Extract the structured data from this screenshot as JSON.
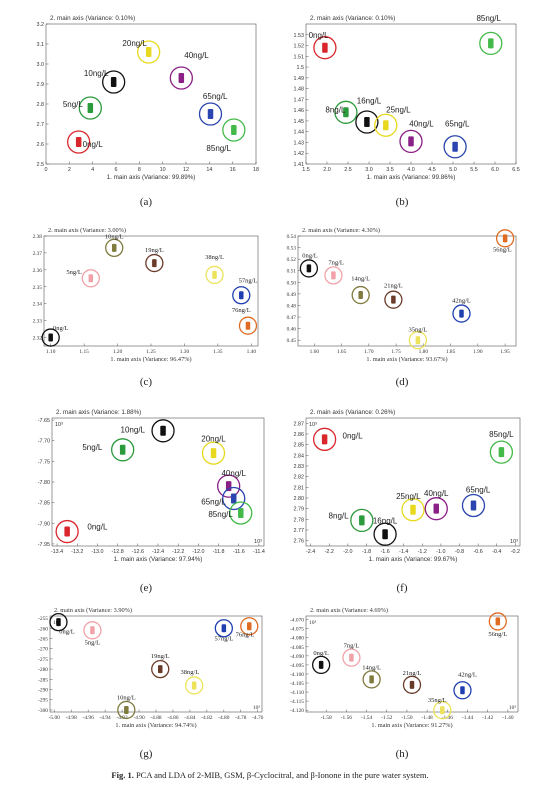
{
  "caption": {
    "fig": "Fig. 1.",
    "text": "PCA and LDA of 2-MIB, GSM, β-Cyclocitral, and β-Ionone in the pure water system."
  },
  "chart_data": [
    {
      "id": "a",
      "panel_label": "(a)",
      "type": "scatter",
      "title": "2. main axis (Variance: 0.10%)",
      "xlabel": "1. main axis (Variance: 99.89%)",
      "xlim": [
        0,
        18
      ],
      "ylim": [
        2.5,
        3.2
      ],
      "xticks": [
        0,
        2,
        4,
        6,
        8,
        10,
        12,
        14,
        16,
        18
      ],
      "yticks": [
        2.5,
        2.6,
        2.7,
        2.8,
        2.9,
        3.0,
        3.1,
        3.2
      ],
      "xtick_labels": [
        "0",
        "2",
        "4",
        "6",
        "8",
        "10",
        "12",
        "14",
        "16",
        "18"
      ],
      "ytick_labels": [
        "2.5",
        "2.6",
        "2.7",
        "2.8",
        "2.9",
        "3.0",
        "3.1",
        "3.2"
      ],
      "font": "sans",
      "points": [
        {
          "label": "0ng/L",
          "x": 2.8,
          "y": 2.61,
          "color": "#d9262c",
          "lx": 4.0,
          "ly": 2.585
        },
        {
          "label": "5ng/L",
          "x": 3.8,
          "y": 2.78,
          "color": "#2a9a3b",
          "lx": 2.3,
          "ly": 2.785
        },
        {
          "label": "10ng/L",
          "x": 5.8,
          "y": 2.91,
          "color": "#111111",
          "lx": 4.3,
          "ly": 2.94
        },
        {
          "label": "20ng/L",
          "x": 8.8,
          "y": 3.06,
          "color": "#e8d91e",
          "lx": 7.6,
          "ly": 3.09
        },
        {
          "label": "40ng/L",
          "x": 11.6,
          "y": 2.93,
          "color": "#8a1f86",
          "lx": 12.9,
          "ly": 3.03
        },
        {
          "label": "65ng/L",
          "x": 14.1,
          "y": 2.75,
          "color": "#2a44b0",
          "lx": 14.5,
          "ly": 2.825
        },
        {
          "label": "85ng/L",
          "x": 16.1,
          "y": 2.67,
          "color": "#43b94a",
          "lx": 14.8,
          "ly": 2.565
        }
      ]
    },
    {
      "id": "b",
      "panel_label": "(b)",
      "type": "scatter",
      "title": "2. main axis (Variance: 0.10%)",
      "xlabel": "1. main axis (Variance: 99.86%)",
      "xlim": [
        1.5,
        6.5
      ],
      "ylim": [
        1.41,
        1.54
      ],
      "xticks": [
        1.5,
        2.0,
        2.5,
        3.0,
        3.5,
        4.0,
        4.5,
        5.0,
        5.5,
        6.0,
        6.5
      ],
      "yticks": [
        1.41,
        1.42,
        1.43,
        1.44,
        1.45,
        1.46,
        1.47,
        1.48,
        1.49,
        1.5,
        1.51,
        1.52,
        1.53
      ],
      "xtick_labels": [
        "1.5",
        "2.0",
        "2.5",
        "3.0",
        "3.5",
        "4.0",
        "4.5",
        "5.0",
        "5.5",
        "6.0",
        "6.5"
      ],
      "ytick_labels": [
        "1.41",
        "1.42",
        "1.43",
        "1.44",
        "1.45",
        "1.46",
        "1.47",
        "1.48",
        "1.49",
        "1.5",
        "1.51",
        "1.52",
        "1.53"
      ],
      "font": "sans",
      "points": [
        {
          "label": "0ng/L",
          "x": 1.95,
          "y": 1.518,
          "color": "#d9262c",
          "lx": 1.8,
          "ly": 1.527
        },
        {
          "label": "8ng/L",
          "x": 2.45,
          "y": 1.458,
          "color": "#2a9a3b",
          "lx": 2.2,
          "ly": 1.458
        },
        {
          "label": "16ng/L",
          "x": 2.95,
          "y": 1.449,
          "color": "#111111",
          "lx": 3.0,
          "ly": 1.466
        },
        {
          "label": "25ng/L",
          "x": 3.4,
          "y": 1.446,
          "color": "#e8d91e",
          "lx": 3.7,
          "ly": 1.458
        },
        {
          "label": "40ng/L",
          "x": 4.0,
          "y": 1.431,
          "color": "#8a1f86",
          "lx": 4.25,
          "ly": 1.445
        },
        {
          "label": "65ng/L",
          "x": 5.05,
          "y": 1.426,
          "color": "#2a44b0",
          "lx": 5.1,
          "ly": 1.445
        },
        {
          "label": "85ng/L",
          "x": 5.9,
          "y": 1.522,
          "color": "#43b94a",
          "lx": 5.85,
          "ly": 1.543
        }
      ]
    },
    {
      "id": "c",
      "panel_label": "(c)",
      "type": "scatter",
      "title": "2. main axis (Variance: 3.00%)",
      "xlabel": "1. main axis (Variance: 96.47%)",
      "xlim": [
        1.09,
        1.41
      ],
      "ylim": [
        2.315,
        2.38
      ],
      "xticks": [
        1.1,
        1.15,
        1.2,
        1.25,
        1.3,
        1.35,
        1.4
      ],
      "yticks": [
        2.32,
        2.33,
        2.34,
        2.35,
        2.36,
        2.37,
        2.38
      ],
      "xtick_labels": [
        "1.10",
        "1.15",
        "1.20",
        "1.25",
        "1.30",
        "1.35",
        "1.40"
      ],
      "ytick_labels": [
        "2.32",
        "2.33",
        "2.34",
        "2.35",
        "2.36",
        "2.37",
        "2.38"
      ],
      "font": "serif",
      "points": [
        {
          "label": "0ng/L",
          "x": 1.1,
          "y": 2.32,
          "color": "#111111",
          "lx": 1.115,
          "ly": 2.3245
        },
        {
          "label": "5ng/L",
          "x": 1.16,
          "y": 2.355,
          "color": "#f0a2a8",
          "lx": 1.135,
          "ly": 2.3575
        },
        {
          "label": "10ng/L",
          "x": 1.195,
          "y": 2.373,
          "color": "#7f7a3d",
          "lx": 1.195,
          "ly": 2.3785
        },
        {
          "label": "19ng/L",
          "x": 1.255,
          "y": 2.364,
          "color": "#6b3b2a",
          "lx": 1.255,
          "ly": 2.3705
        },
        {
          "label": "38ng/L",
          "x": 1.345,
          "y": 2.357,
          "color": "#ece35a",
          "lx": 1.345,
          "ly": 2.3665
        },
        {
          "label": "57ng/L",
          "x": 1.385,
          "y": 2.345,
          "color": "#1f3fb0",
          "lx": 1.395,
          "ly": 2.3525
        },
        {
          "label": "76ng/L",
          "x": 1.395,
          "y": 2.327,
          "color": "#e06b22",
          "lx": 1.385,
          "ly": 2.335
        }
      ]
    },
    {
      "id": "d",
      "panel_label": "(d)",
      "type": "scatter",
      "title": "2. main axis (Variance: 4.30%)",
      "xlabel": "1. main axis (Variance: 93.67%)",
      "xlim": [
        1.57,
        1.97
      ],
      "ylim": [
        0.445,
        0.54
      ],
      "xticks": [
        1.6,
        1.65,
        1.7,
        1.75,
        1.8,
        1.85,
        1.9,
        1.95
      ],
      "yticks": [
        0.45,
        0.46,
        0.47,
        0.48,
        0.49,
        0.5,
        0.51,
        0.52,
        0.53,
        0.54
      ],
      "xtick_labels": [
        "1.60",
        "1.65",
        "1.70",
        "1.75",
        "1.80",
        "1.85",
        "1.90",
        "1.95"
      ],
      "ytick_labels": [
        "0.45",
        "0.46",
        "0.47",
        "0.48",
        "0.49",
        "0.50",
        "0.51",
        "0.52",
        "0.53",
        "0.54"
      ],
      "font": "serif",
      "points": [
        {
          "label": "0ng/L",
          "x": 1.59,
          "y": 0.512,
          "color": "#111111",
          "lx": 1.592,
          "ly": 0.5215
        },
        {
          "label": "7ng/L",
          "x": 1.635,
          "y": 0.506,
          "color": "#f0a2a8",
          "lx": 1.64,
          "ly": 0.5155
        },
        {
          "label": "14ng/L",
          "x": 1.685,
          "y": 0.489,
          "color": "#7f7a3d",
          "lx": 1.685,
          "ly": 0.5015
        },
        {
          "label": "21ng/L",
          "x": 1.745,
          "y": 0.485,
          "color": "#6b3b2a",
          "lx": 1.745,
          "ly": 0.4955
        },
        {
          "label": "35ng/L",
          "x": 1.79,
          "y": 0.45,
          "color": "#ece35a",
          "lx": 1.79,
          "ly": 0.4575
        },
        {
          "label": "42ng/L",
          "x": 1.87,
          "y": 0.473,
          "color": "#1f3fb0",
          "lx": 1.87,
          "ly": 0.4825
        },
        {
          "label": "56ng/L",
          "x": 1.95,
          "y": 0.538,
          "color": "#e06b22",
          "lx": 1.945,
          "ly": 0.5265
        }
      ]
    },
    {
      "id": "e",
      "panel_label": "(e)",
      "type": "scatter",
      "title": "2. main axis (Variance: 1.88%)",
      "xlabel": "1. main axis (Variance: 97.94%)",
      "multiplier": "10³",
      "xlim": [
        -13.45,
        -11.35
      ],
      "ylim": [
        -7.955,
        -7.645
      ],
      "xticks": [
        -13.4,
        -13.2,
        -13.0,
        -12.8,
        -12.6,
        -12.4,
        -12.2,
        -12.0,
        -11.8,
        -11.6,
        -11.4
      ],
      "yticks": [
        -7.95,
        -7.9,
        -7.85,
        -7.8,
        -7.75,
        -7.7,
        -7.65
      ],
      "xtick_labels": [
        "-13.4",
        "-13.2",
        "-13.0",
        "-12.8",
        "-12.6",
        "-12.4",
        "-12.2",
        "-12.0",
        "-11.8",
        "-11.6",
        "-11.4"
      ],
      "ytick_labels": [
        "-7.95",
        "-7.90",
        "-7.85",
        "-7.80",
        "-7.75",
        "-7.70",
        "-7.65"
      ],
      "font": "sans",
      "points": [
        {
          "label": "0ng/L",
          "x": -13.3,
          "y": -7.92,
          "color": "#d9262c",
          "lx": -13.0,
          "ly": -7.915
        },
        {
          "label": "5ng/L",
          "x": -12.75,
          "y": -7.722,
          "color": "#2a9a3b",
          "lx": -13.05,
          "ly": -7.722
        },
        {
          "label": "10ng/L",
          "x": -12.35,
          "y": -7.676,
          "color": "#111111",
          "lx": -12.65,
          "ly": -7.68
        },
        {
          "label": "20ng/L",
          "x": -11.85,
          "y": -7.73,
          "color": "#e8d91e",
          "lx": -11.85,
          "ly": -7.702
        },
        {
          "label": "40ng/L",
          "x": -11.7,
          "y": -7.81,
          "color": "#8a1f86",
          "lx": -11.65,
          "ly": -7.785
        },
        {
          "label": "65ng/L",
          "x": -11.65,
          "y": -7.84,
          "color": "#2a44b0",
          "lx": -11.85,
          "ly": -7.855
        },
        {
          "label": "85ng/L",
          "x": -11.58,
          "y": -7.875,
          "color": "#43b94a",
          "lx": -11.78,
          "ly": -7.885
        }
      ]
    },
    {
      "id": "f",
      "panel_label": "(f)",
      "type": "scatter",
      "title": "2. main axis (Variance: 0.26%)",
      "xlabel": "1. main axis (Variance: 99.67%)",
      "multiplier": "10³",
      "xlim": [
        -2.45,
        -0.15
      ],
      "ylim": [
        2.755,
        2.875
      ],
      "xticks": [
        -2.4,
        -2.2,
        -2.0,
        -1.8,
        -1.6,
        -1.4,
        -1.2,
        -1.0,
        -0.8,
        -0.6,
        -0.4,
        -0.2
      ],
      "yticks": [
        2.76,
        2.77,
        2.78,
        2.79,
        2.8,
        2.81,
        2.82,
        2.83,
        2.84,
        2.85,
        2.86,
        2.87
      ],
      "xtick_labels": [
        "-2.4",
        "-2.2",
        "-2.0",
        "-1.8",
        "-1.6",
        "-1.4",
        "-1.2",
        "-1.0",
        "-0.8",
        "-0.6",
        "-0.4",
        "-0.2"
      ],
      "ytick_labels": [
        "2.76",
        "2.77",
        "2.78",
        "2.79",
        "2.80",
        "2.81",
        "2.82",
        "2.83",
        "2.84",
        "2.85",
        "2.86",
        "2.87"
      ],
      "font": "sans",
      "points": [
        {
          "label": "0ng/L",
          "x": -2.25,
          "y": 2.855,
          "color": "#d9262c",
          "lx": -1.95,
          "ly": 2.856
        },
        {
          "label": "8ng/L",
          "x": -1.85,
          "y": 2.779,
          "color": "#2a9a3b",
          "lx": -2.1,
          "ly": 2.781
        },
        {
          "label": "16ng/L",
          "x": -1.6,
          "y": 2.766,
          "color": "#111111",
          "lx": -1.6,
          "ly": 2.776
        },
        {
          "label": "25ng/L",
          "x": -1.3,
          "y": 2.789,
          "color": "#e8d91e",
          "lx": -1.35,
          "ly": 2.799
        },
        {
          "label": "40ng/L",
          "x": -1.05,
          "y": 2.79,
          "color": "#8a1f86",
          "lx": -1.05,
          "ly": 2.802
        },
        {
          "label": "65ng/L",
          "x": -0.65,
          "y": 2.793,
          "color": "#2a44b0",
          "lx": -0.6,
          "ly": 2.805
        },
        {
          "label": "85ng/L",
          "x": -0.35,
          "y": 2.843,
          "color": "#43b94a",
          "lx": -0.35,
          "ly": 2.857
        }
      ]
    },
    {
      "id": "g",
      "panel_label": "(g)",
      "type": "scatter",
      "title": "2. main axis (Variance: 3.90%)",
      "xlabel": "1. main axis (Variance: 94.74%)",
      "multiplier": "10³",
      "xlim": [
        -5.005,
        -4.755
      ],
      "ylim": [
        -301,
        -254
      ],
      "xticks": [
        -5.0,
        -4.98,
        -4.96,
        -4.94,
        -4.92,
        -4.9,
        -4.88,
        -4.86,
        -4.84,
        -4.82,
        -4.8,
        -4.78,
        -4.76
      ],
      "yticks": [
        -300,
        -295,
        -290,
        -285,
        -280,
        -275,
        -270,
        -265,
        -260,
        -255
      ],
      "xtick_labels": [
        "-5.00",
        "-4.98",
        "-4.96",
        "-4.94",
        "-4.92",
        "-4.90",
        "-4.88",
        "-4.86",
        "-4.84",
        "-4.82",
        "-4.80",
        "-4.78",
        "-4.76"
      ],
      "ytick_labels": [
        "-300",
        "-295",
        "-290",
        "-285",
        "-280",
        "-275",
        "-270",
        "-265",
        "-260",
        "-255"
      ],
      "font": "serif",
      "points": [
        {
          "label": "0ng/L",
          "x": -4.995,
          "y": -257,
          "color": "#111111",
          "lx": -4.985,
          "ly": -262.5
        },
        {
          "label": "5ng/L",
          "x": -4.955,
          "y": -261,
          "color": "#f0a2a8",
          "lx": -4.955,
          "ly": -268
        },
        {
          "label": "10ng/L",
          "x": -4.915,
          "y": -300,
          "color": "#7f7a3d",
          "lx": -4.915,
          "ly": -295
        },
        {
          "label": "19ng/L",
          "x": -4.875,
          "y": -280,
          "color": "#6b3b2a",
          "lx": -4.875,
          "ly": -274.5
        },
        {
          "label": "38ng/L",
          "x": -4.835,
          "y": -288,
          "color": "#ece35a",
          "lx": -4.84,
          "ly": -282.5
        },
        {
          "label": "57ng/L",
          "x": -4.8,
          "y": -260,
          "color": "#1f3fb0",
          "lx": -4.8,
          "ly": -266
        },
        {
          "label": "76ng/L",
          "x": -4.77,
          "y": -259,
          "color": "#e06b22",
          "lx": -4.775,
          "ly": -264
        }
      ]
    },
    {
      "id": "h",
      "panel_label": "(h)",
      "type": "scatter",
      "title": "2. main axis (Variance: 4.69%)",
      "xlabel": "1. main axis (Variance: 91.27%)",
      "multiplier": "10³",
      "xlim": [
        -1.6,
        -1.39
      ],
      "ylim": [
        -4.121,
        -4.068
      ],
      "xticks": [
        -1.58,
        -1.56,
        -1.54,
        -1.52,
        -1.5,
        -1.48,
        -1.46,
        -1.44,
        -1.42,
        -1.4
      ],
      "yticks": [
        -4.12,
        -4.115,
        -4.11,
        -4.105,
        -4.1,
        -4.095,
        -4.09,
        -4.085,
        -4.08,
        -4.075,
        -4.07
      ],
      "xtick_labels": [
        "-1.58",
        "-1.56",
        "-1.54",
        "-1.52",
        "-1.50",
        "-1.48",
        "-1.46",
        "-1.44",
        "-1.42",
        "-1.40"
      ],
      "ytick_labels": [
        "-4.120",
        "-4.115",
        "-4.110",
        "-4.105",
        "-4.100",
        "-4.095",
        "-4.090",
        "-4.085",
        "-4.080",
        "-4.075",
        "-4.070"
      ],
      "font": "serif",
      "points": [
        {
          "label": "0ng/L",
          "x": -1.585,
          "y": -4.095,
          "color": "#111111",
          "lx": -1.585,
          "ly": -4.0895
        },
        {
          "label": "7ng/L",
          "x": -1.555,
          "y": -4.091,
          "color": "#f0a2a8",
          "lx": -1.555,
          "ly": -4.0855
        },
        {
          "label": "14ng/L",
          "x": -1.535,
          "y": -4.103,
          "color": "#7f7a3d",
          "lx": -1.535,
          "ly": -4.0975
        },
        {
          "label": "21ng/L",
          "x": -1.495,
          "y": -4.106,
          "color": "#6b3b2a",
          "lx": -1.495,
          "ly": -4.1005
        },
        {
          "label": "35ng/L",
          "x": -1.465,
          "y": -4.12,
          "color": "#ece35a",
          "lx": -1.47,
          "ly": -4.1155
        },
        {
          "label": "42ng/L",
          "x": -1.445,
          "y": -4.109,
          "color": "#1f3fb0",
          "lx": -1.44,
          "ly": -4.1015
        },
        {
          "label": "56ng/L",
          "x": -1.41,
          "y": -4.071,
          "color": "#e06b22",
          "lx": -1.41,
          "ly": -4.079
        }
      ]
    }
  ]
}
